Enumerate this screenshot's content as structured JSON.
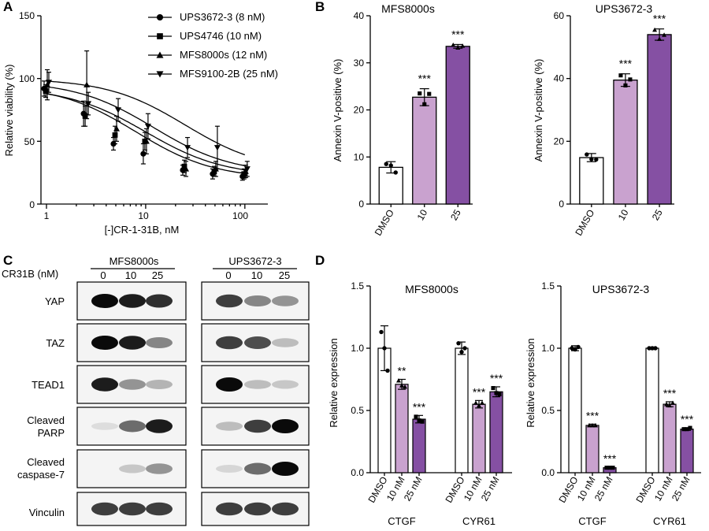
{
  "figure": {
    "panel_labels": [
      "A",
      "B",
      "C",
      "D"
    ],
    "colors": {
      "dmso": "#ffffff",
      "low": "#c9a2cf",
      "high": "#8550a3",
      "axis": "#000000"
    }
  },
  "panelA": {
    "ylabel": "Relative viability (%)",
    "xlabel": "[-]CR-1-31B, nM",
    "yticks": [
      "0",
      "50",
      "100",
      "150"
    ],
    "xticks": [
      "1",
      "10",
      "100"
    ],
    "legend": [
      {
        "label": "UPS3672-3 (8 nM)",
        "marker": "circle"
      },
      {
        "label": "UPS4746 (10 nM)",
        "marker": "square"
      },
      {
        "label": "MFS8000s (12 nM)",
        "marker": "triangle-up"
      },
      {
        "label": "MFS9100-2B (25 nM)",
        "marker": "triangle-down"
      }
    ]
  },
  "panelB": {
    "ylabel": "Annexin V-positive (%)",
    "charts": [
      {
        "title": "MFS8000s",
        "yticks": [
          "0",
          "10",
          "20",
          "30",
          "40"
        ],
        "categories": [
          "DMSO",
          "10",
          "25"
        ],
        "stars": [
          "",
          "***",
          "***"
        ]
      },
      {
        "title": "UPS3672-3",
        "yticks": [
          "0",
          "20",
          "40",
          "60"
        ],
        "categories": [
          "DMSO",
          "10",
          "25"
        ],
        "stars": [
          "",
          "***",
          "***"
        ]
      }
    ]
  },
  "panelC": {
    "cr_label": "CR31B (nM)",
    "groups": [
      {
        "name": "MFS8000s",
        "lanes": [
          "0",
          "10",
          "25"
        ]
      },
      {
        "name": "UPS3672-3",
        "lanes": [
          "0",
          "10",
          "25"
        ]
      }
    ],
    "rows": [
      {
        "label1": "YAP",
        "label2": ""
      },
      {
        "label1": "TAZ",
        "label2": ""
      },
      {
        "label1": "TEAD1",
        "label2": ""
      },
      {
        "label1": "Cleaved",
        "label2": "PARP"
      },
      {
        "label1": "Cleaved",
        "label2": "caspase-7"
      },
      {
        "label1": "Vinculin",
        "label2": ""
      }
    ],
    "intensity": [
      [
        [
          1.0,
          0.95,
          0.9
        ],
        [
          0.85,
          0.6,
          0.55
        ]
      ],
      [
        [
          1.0,
          0.95,
          0.6
        ],
        [
          0.85,
          0.8,
          0.35
        ]
      ],
      [
        [
          0.95,
          0.55,
          0.4
        ],
        [
          1.0,
          0.35,
          0.3
        ]
      ],
      [
        [
          0.15,
          0.7,
          0.95
        ],
        [
          0.35,
          0.85,
          1.0
        ]
      ],
      [
        [
          0.0,
          0.3,
          0.55
        ],
        [
          0.2,
          0.7,
          1.0
        ]
      ],
      [
        [
          0.85,
          0.85,
          0.85
        ],
        [
          0.85,
          0.85,
          0.85
        ]
      ]
    ]
  },
  "panelD": {
    "ylabel": "Relative expression",
    "yticks": [
      "0.0",
      "0.5",
      "1.0",
      "1.5"
    ],
    "bar_labels": [
      "DMSO",
      "10 nM",
      "25 nM"
    ],
    "genes": [
      "CTGF",
      "CYR61"
    ],
    "charts": [
      {
        "title": "MFS8000s",
        "stars": [
          [
            "",
            "**",
            "***"
          ],
          [
            "",
            "***",
            "***"
          ]
        ]
      },
      {
        "title": "UPS3672-3",
        "stars": [
          [
            "",
            "***",
            "***"
          ],
          [
            "",
            "***",
            "***"
          ]
        ]
      }
    ]
  },
  "chart_data": [
    {
      "type": "line",
      "title": "",
      "xlabel": "[-]CR-1-31B, nM",
      "ylabel": "Relative viability (%)",
      "xscale": "log",
      "xlim": [
        1,
        150
      ],
      "ylim": [
        0,
        150
      ],
      "x": [
        1,
        2.5,
        5,
        10,
        25,
        50,
        100
      ],
      "legend_position": "top-right",
      "series": [
        {
          "name": "UPS3672-3 (8 nM)",
          "marker": "circle",
          "values": [
            92,
            72,
            48,
            40,
            27,
            24,
            22
          ],
          "errors": [
            6,
            10,
            5,
            8,
            4,
            4,
            3
          ],
          "ic50": 8
        },
        {
          "name": "UPS4746 (10 nM)",
          "marker": "square",
          "values": [
            90,
            70,
            55,
            50,
            30,
            26,
            24
          ],
          "errors": [
            5,
            8,
            7,
            7,
            5,
            4,
            4
          ],
          "ic50": 10
        },
        {
          "name": "MFS8000s (12 nM)",
          "marker": "triangle-up",
          "values": [
            95,
            95,
            60,
            50,
            28,
            28,
            26
          ],
          "errors": [
            12,
            27,
            10,
            10,
            6,
            6,
            5
          ],
          "ic50": 12
        },
        {
          "name": "MFS9100-2B (25 nM)",
          "marker": "triangle-down",
          "values": [
            97,
            80,
            75,
            62,
            45,
            45,
            28
          ],
          "errors": [
            8,
            9,
            9,
            10,
            8,
            17,
            6
          ],
          "ic50": 25
        }
      ]
    },
    {
      "type": "bar",
      "title": "MFS8000s",
      "ylabel": "Annexin V-positive (%)",
      "categories": [
        "DMSO",
        "10",
        "25"
      ],
      "values": [
        7.8,
        22.7,
        33.5
      ],
      "errors": [
        1.2,
        1.8,
        0.4
      ],
      "points": [
        [
          8.5,
          8.2,
          6.7
        ],
        [
          23.5,
          21.2,
          23.4
        ],
        [
          33.8,
          33.2,
          33.6
        ]
      ],
      "ylim": [
        0,
        40
      ]
    },
    {
      "type": "bar",
      "title": "UPS3672-3",
      "ylabel": "Annexin V-positive (%)",
      "categories": [
        "DMSO",
        "10",
        "25"
      ],
      "values": [
        14.8,
        39.5,
        54.0
      ],
      "errors": [
        1.3,
        2.0,
        1.8
      ],
      "points": [
        [
          15.8,
          14.3,
          14.2
        ],
        [
          41.0,
          37.8,
          39.7
        ],
        [
          55.5,
          52.6,
          53.9
        ]
      ],
      "ylim": [
        0,
        60
      ]
    },
    {
      "type": "bar",
      "title": "MFS8000s",
      "ylabel": "Relative expression",
      "categories": [
        "DMSO",
        "10 nM",
        "25 nM",
        "DMSO",
        "10 nM",
        "25 nM"
      ],
      "groups": [
        "CTGF",
        "CYR61"
      ],
      "values": [
        1.0,
        0.71,
        0.43,
        1.0,
        0.55,
        0.65
      ],
      "errors": [
        0.18,
        0.04,
        0.03,
        0.05,
        0.03,
        0.04
      ],
      "points": [
        [
          1.13,
          1.0,
          0.82
        ],
        [
          0.74,
          0.7,
          0.69
        ],
        [
          0.45,
          0.42,
          0.41
        ],
        [
          1.04,
          0.97,
          1.0
        ],
        [
          0.56,
          0.54,
          0.56
        ],
        [
          0.68,
          0.64,
          0.63
        ]
      ],
      "ylim": [
        0,
        1.5
      ]
    },
    {
      "type": "bar",
      "title": "UPS3672-3",
      "ylabel": "Relative expression",
      "categories": [
        "DMSO",
        "10 nM",
        "25 nM",
        "DMSO",
        "10 nM",
        "25 nM"
      ],
      "groups": [
        "CTGF",
        "CYR61"
      ],
      "values": [
        1.0,
        0.38,
        0.04,
        1.0,
        0.55,
        0.35
      ],
      "errors": [
        0.02,
        0.01,
        0.005,
        0.01,
        0.02,
        0.01
      ],
      "points": [
        [
          1.0,
          0.99,
          1.01
        ],
        [
          0.38,
          0.38,
          0.38
        ],
        [
          0.04,
          0.04,
          0.04
        ],
        [
          1.0,
          1.0,
          1.0
        ],
        [
          0.55,
          0.54,
          0.56
        ],
        [
          0.35,
          0.35,
          0.36
        ]
      ],
      "ylim": [
        0,
        1.5
      ]
    }
  ]
}
